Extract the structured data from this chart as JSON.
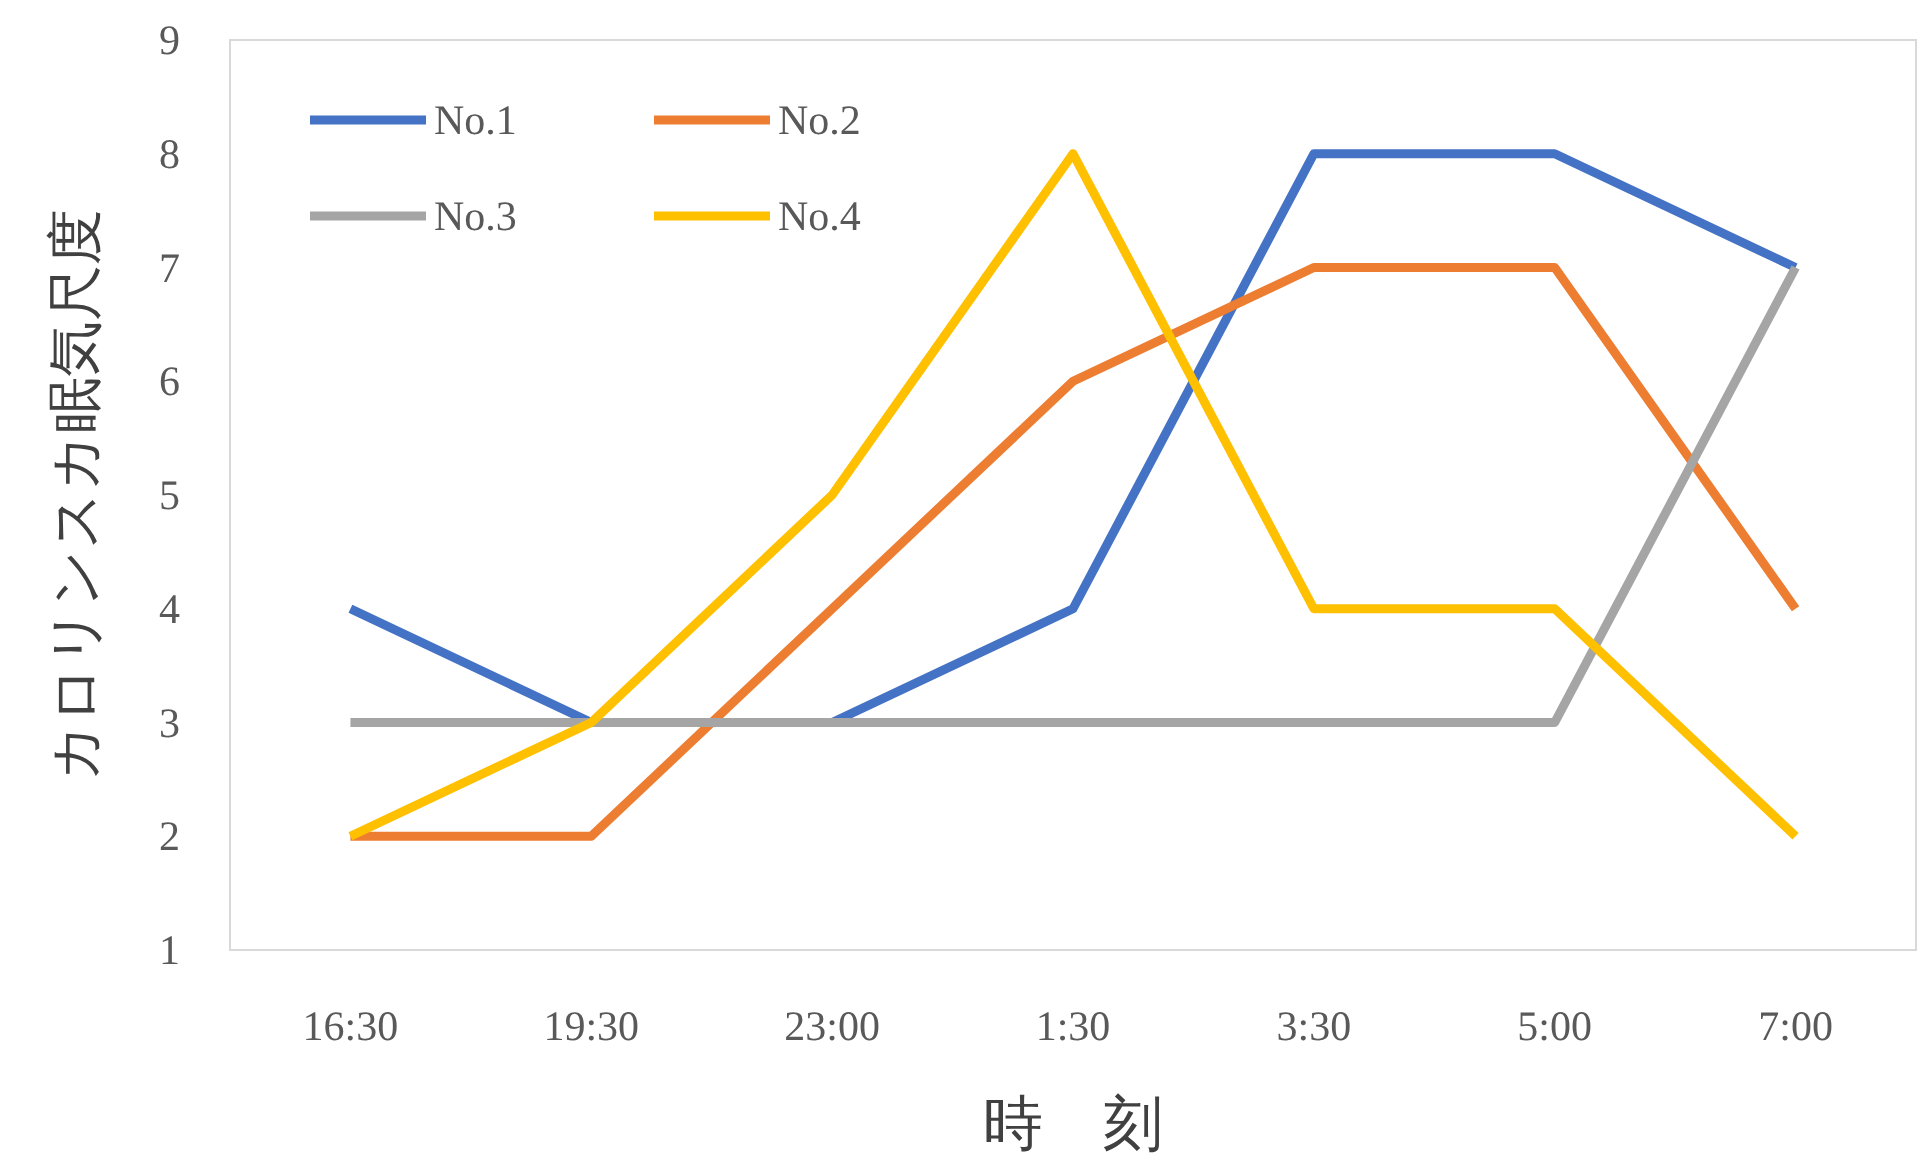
{
  "chart_data": {
    "type": "line",
    "xlabel": "時　刻",
    "ylabel": "カロリンスカ眠気尺度",
    "categories": [
      "16:30",
      "19:30",
      "23:00",
      "1:30",
      "3:30",
      "5:00",
      "7:00"
    ],
    "series": [
      {
        "name": "No.1",
        "color": "#4472c4",
        "values": [
          4,
          3,
          3,
          4,
          8,
          8,
          7
        ]
      },
      {
        "name": "No.2",
        "color": "#ed7d31",
        "values": [
          2,
          2,
          4,
          6,
          7,
          7,
          4
        ]
      },
      {
        "name": "No.3",
        "color": "#a5a5a5",
        "values": [
          3,
          3,
          3,
          3,
          3,
          3,
          7
        ]
      },
      {
        "name": "No.4",
        "color": "#ffc000",
        "values": [
          2,
          3,
          5,
          8,
          4,
          4,
          2
        ]
      }
    ],
    "ylim": [
      1,
      9
    ],
    "yticks": [
      1,
      2,
      3,
      4,
      5,
      6,
      7,
      8,
      9
    ],
    "legend": "top left",
    "line_style": "solid"
  }
}
